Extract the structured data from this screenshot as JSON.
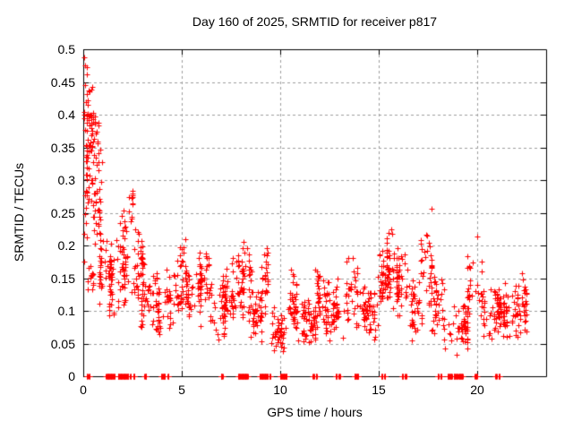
{
  "title": "Day 160 of 2025, SRMTID for receiver p817",
  "chart_data": {
    "type": "scatter",
    "title": "Day 160 of 2025, SRMTID for receiver p817",
    "xlabel": "GPS time / hours",
    "ylabel": "SRMTID / TECUs",
    "xlim": [
      0,
      23.5
    ],
    "ylim": [
      0,
      0.5
    ],
    "xtick_labels": [
      "0",
      "5",
      "10",
      "15",
      "20"
    ],
    "xtick_values": [
      0,
      5,
      10,
      15,
      20
    ],
    "ytick_labels": [
      "0",
      "0.05",
      "0.1",
      "0.15",
      "0.2",
      "0.25",
      "0.3",
      "0.35",
      "0.4",
      "0.45",
      "0.5"
    ],
    "ytick_values": [
      0,
      0.05,
      0.1,
      0.15,
      0.2,
      0.25,
      0.3,
      0.35,
      0.4,
      0.45,
      0.5
    ],
    "grid": true,
    "legend": "none",
    "marker": "plus",
    "colors": {
      "marker": "#ff0000",
      "grid": "#9e9e9e",
      "axis": "#000000",
      "background": "#ffffff",
      "text": "#000000"
    },
    "series_name": "SRMTID",
    "seed": 42,
    "density_bands": [
      [
        0.02,
        0.28,
        34,
        0.2,
        0.49
      ],
      [
        0.08,
        0.45,
        38,
        0.25,
        0.47
      ],
      [
        0.3,
        0.8,
        30,
        0.22,
        0.44
      ],
      [
        0.5,
        1.05,
        26,
        0.15,
        0.35
      ],
      [
        0.02,
        0.5,
        14,
        0.09,
        0.2
      ],
      [
        0.8,
        1.35,
        26,
        0.1,
        0.25
      ],
      [
        1.2,
        1.8,
        40,
        0.08,
        0.22
      ],
      [
        1.7,
        2.3,
        45,
        0.09,
        0.26
      ],
      [
        2.3,
        2.6,
        10,
        0.23,
        0.285
      ],
      [
        2.2,
        3.0,
        40,
        0.1,
        0.23
      ],
      [
        2.9,
        3.5,
        32,
        0.06,
        0.2
      ],
      [
        3.4,
        4.2,
        38,
        0.05,
        0.16
      ],
      [
        4.2,
        5.0,
        38,
        0.06,
        0.18
      ],
      [
        4.9,
        5.3,
        20,
        0.1,
        0.22
      ],
      [
        5.2,
        6.0,
        45,
        0.07,
        0.2
      ],
      [
        5.9,
        6.5,
        40,
        0.09,
        0.21
      ],
      [
        6.4,
        7.2,
        45,
        0.05,
        0.16
      ],
      [
        7.1,
        7.6,
        26,
        0.06,
        0.18
      ],
      [
        7.5,
        8.1,
        32,
        0.08,
        0.2
      ],
      [
        8.0,
        8.6,
        32,
        0.09,
        0.21
      ],
      [
        8.4,
        9.1,
        38,
        0.05,
        0.15
      ],
      [
        9.0,
        9.5,
        26,
        0.08,
        0.205
      ],
      [
        9.4,
        10.3,
        45,
        0.03,
        0.11
      ],
      [
        10.2,
        10.9,
        38,
        0.05,
        0.17
      ],
      [
        10.8,
        11.8,
        58,
        0.04,
        0.13
      ],
      [
        11.7,
        12.3,
        32,
        0.06,
        0.18
      ],
      [
        12.2,
        13.3,
        58,
        0.05,
        0.15
      ],
      [
        13.3,
        13.9,
        32,
        0.07,
        0.19
      ],
      [
        13.8,
        15.0,
        58,
        0.05,
        0.15
      ],
      [
        14.9,
        15.5,
        32,
        0.08,
        0.2
      ],
      [
        15.4,
        16.0,
        40,
        0.1,
        0.225
      ],
      [
        15.9,
        16.6,
        40,
        0.08,
        0.21
      ],
      [
        16.5,
        17.2,
        38,
        0.05,
        0.15
      ],
      [
        17.1,
        17.7,
        32,
        0.09,
        0.23
      ],
      [
        17.6,
        18.4,
        38,
        0.05,
        0.17
      ],
      [
        18.3,
        19.5,
        52,
        0.03,
        0.12
      ],
      [
        19.5,
        20.4,
        38,
        0.06,
        0.19
      ],
      [
        20.3,
        21.4,
        58,
        0.05,
        0.15
      ],
      [
        21.3,
        22.35,
        55,
        0.05,
        0.15
      ],
      [
        22.25,
        22.62,
        22,
        0.05,
        0.16
      ]
    ],
    "outlier_points": [
      [
        2.45,
        0.272
      ],
      [
        2.52,
        0.283
      ],
      [
        15.65,
        0.225
      ],
      [
        15.7,
        0.218
      ],
      [
        17.7,
        0.256
      ],
      [
        20.0,
        0.214
      ],
      [
        22.28,
        0.158
      ],
      [
        22.3,
        0.148
      ],
      [
        0.05,
        0.488
      ],
      [
        0.1,
        0.475
      ],
      [
        0.18,
        0.462
      ]
    ],
    "zero_marker_intervals": [
      [
        0.18,
        0.22
      ],
      [
        0.28,
        0.33
      ],
      [
        1.15,
        1.6
      ],
      [
        1.75,
        2.3
      ],
      [
        2.38,
        2.42
      ],
      [
        2.53,
        2.62
      ],
      [
        3.1,
        3.2
      ],
      [
        3.95,
        4.15
      ],
      [
        4.28,
        4.34
      ],
      [
        6.98,
        7.08
      ],
      [
        7.85,
        8.35
      ],
      [
        8.95,
        9.38
      ],
      [
        9.45,
        9.52
      ],
      [
        10.0,
        10.35
      ],
      [
        11.65,
        11.72
      ],
      [
        11.8,
        11.87
      ],
      [
        12.82,
        12.88
      ],
      [
        12.97,
        13.03
      ],
      [
        13.75,
        13.97
      ],
      [
        15.12,
        15.18
      ],
      [
        15.28,
        15.34
      ],
      [
        16.18,
        16.25
      ],
      [
        16.33,
        16.39
      ],
      [
        17.98,
        18.05
      ],
      [
        18.12,
        18.18
      ],
      [
        18.5,
        18.72
      ],
      [
        18.8,
        19.0
      ],
      [
        19.05,
        19.27
      ],
      [
        19.88,
        19.99
      ],
      [
        20.92,
        20.98
      ],
      [
        21.08,
        21.15
      ]
    ]
  }
}
